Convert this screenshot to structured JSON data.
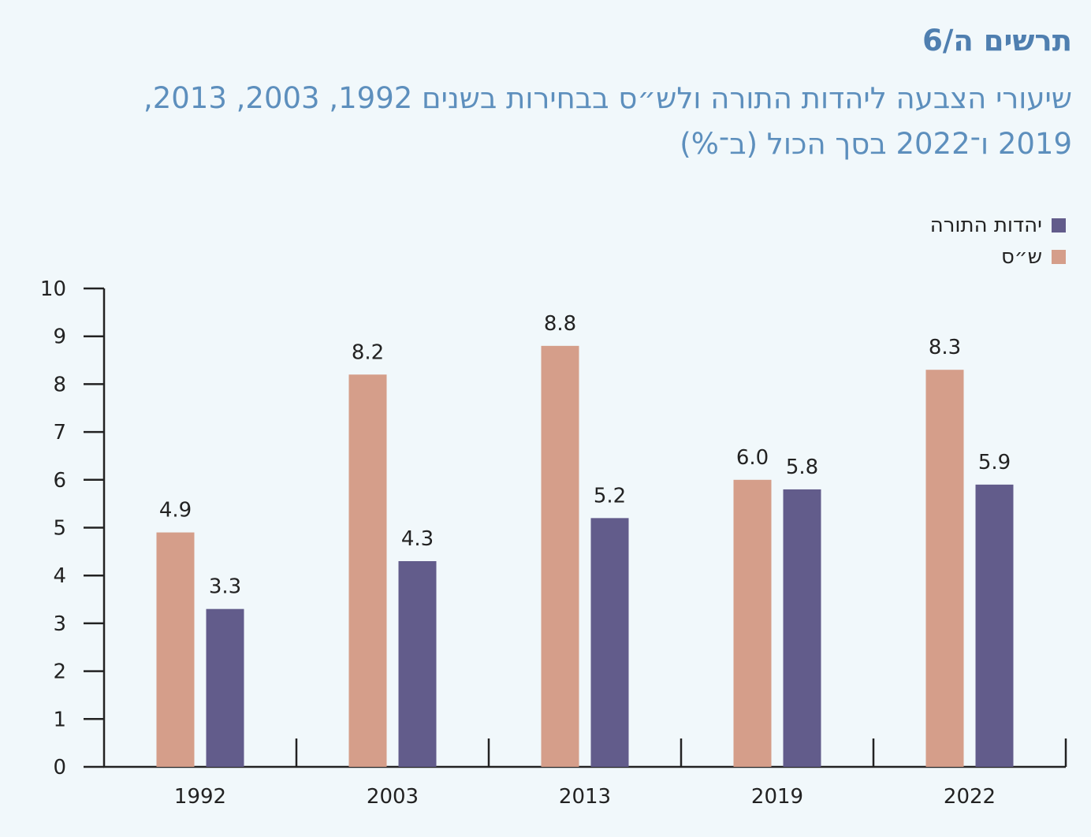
{
  "header": {
    "figure_label": "תרשים ה/6",
    "title": "שיעורי הצבעה ליהדות התורה ולש״ס בבחירות בשנים 1992, 2003, 2013, 2019 ו־2022 בסך הכול (ב־%)"
  },
  "colors": {
    "utj": "#625c8b",
    "shas": "#d59e8a",
    "axis": "#222222",
    "title": "#5d8fbd",
    "background": "#f1f8fb"
  },
  "chart_data": {
    "type": "bar",
    "title": "שיעורי הצבעה ליהדות התורה ולש״ס בבחירות בשנים 1992, 2003, 2013, 2019 ו־2022 בסך הכול (ב־%)",
    "xlabel": "",
    "ylabel": "",
    "ylim": [
      0,
      10
    ],
    "yticks": [
      "0",
      "1",
      "2",
      "3",
      "4",
      "5",
      "6",
      "7",
      "8",
      "9",
      "10"
    ],
    "categories": [
      "1992",
      "2003",
      "2013",
      "2019",
      "2022"
    ],
    "legend_position": "top-right",
    "grid": false,
    "series": [
      {
        "name": "ש״ס",
        "key": "shas",
        "values": [
          4.9,
          8.2,
          8.8,
          6.0,
          8.3
        ],
        "labels": [
          "4.9",
          "8.2",
          "8.8",
          "6.0",
          "8.3"
        ]
      },
      {
        "name": "יהדות התורה",
        "key": "utj",
        "values": [
          3.3,
          4.3,
          5.2,
          5.8,
          5.9
        ],
        "labels": [
          "3.3",
          "4.3",
          "5.2",
          "5.8",
          "5.9"
        ]
      }
    ],
    "legend": [
      {
        "label": "יהדות התורה",
        "key": "utj"
      },
      {
        "label": "ש״ס",
        "key": "shas"
      }
    ]
  }
}
